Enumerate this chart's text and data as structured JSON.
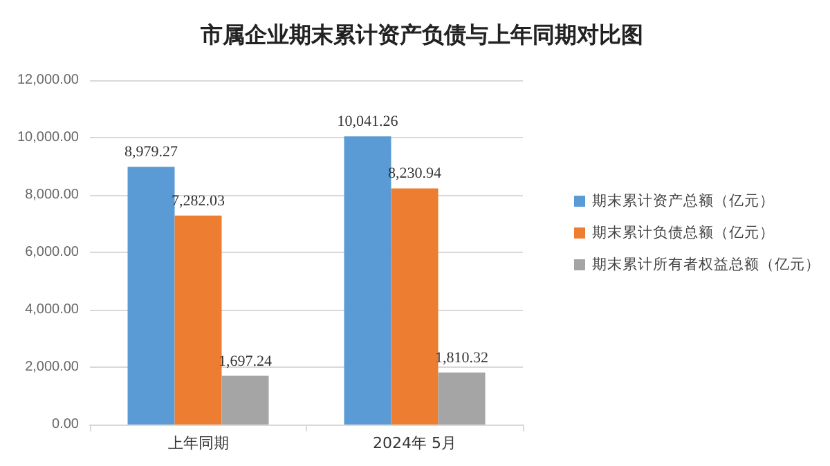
{
  "chart_data": {
    "type": "bar",
    "title": "市属企业期末累计资产负债与上年同期对比图",
    "categories": [
      "上年同期",
      "2024年 5月"
    ],
    "series": [
      {
        "name": "期末累计资产总额（亿元）",
        "color": "#5b9bd5",
        "values": [
          8979.27,
          10041.26
        ],
        "value_labels": [
          "8,979.27",
          "10,041.26"
        ]
      },
      {
        "name": "期末累计负债总额（亿元）",
        "color": "#ed7d31",
        "values": [
          7282.03,
          8230.94
        ],
        "value_labels": [
          "7,282.03",
          "8,230.94"
        ]
      },
      {
        "name": "期末累计所有者权益总额（亿元）",
        "color": "#a5a5a5",
        "values": [
          1697.24,
          1810.32
        ],
        "value_labels": [
          "1,697.24",
          "1,810.32"
        ]
      }
    ],
    "ylim": [
      0,
      12000
    ],
    "yticks": [
      {
        "value": 0,
        "label": "0.00"
      },
      {
        "value": 2000,
        "label": "2,000.00"
      },
      {
        "value": 4000,
        "label": "4,000.00"
      },
      {
        "value": 6000,
        "label": "6,000.00"
      },
      {
        "value": 8000,
        "label": "8,000.00"
      },
      {
        "value": 10000,
        "label": "10,000.00"
      },
      {
        "value": 12000,
        "label": "12,000.00"
      }
    ],
    "grid": "y",
    "legend": "right"
  }
}
